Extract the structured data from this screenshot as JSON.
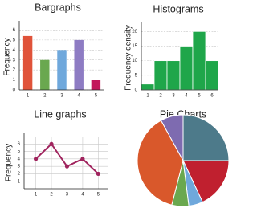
{
  "chart_data": [
    {
      "type": "bar",
      "title": "Bargraphs",
      "ylabel": "Frequency",
      "categories": [
        "1",
        "2",
        "3",
        "4",
        "5"
      ],
      "values": [
        5.4,
        3,
        4,
        5,
        1
      ],
      "colors": [
        "#e0533a",
        "#6aa84f",
        "#6fa8dc",
        "#8e7cc3",
        "#c2185b"
      ],
      "ylim": [
        0,
        6.6
      ],
      "yticks": [
        0,
        1,
        2,
        3,
        4,
        5,
        6
      ],
      "grid": true
    },
    {
      "type": "histogram",
      "title": "Histograms",
      "ylabel": "Frequency density",
      "bins": [
        0.5,
        1.5,
        2.5,
        3.5,
        4.5,
        5.5,
        6.5
      ],
      "values": [
        2,
        10,
        10,
        15,
        20,
        10
      ],
      "color": "#1fa64a",
      "xlim": [
        0.5,
        6.5
      ],
      "xticks": [
        1,
        2,
        3,
        4,
        5,
        6
      ],
      "ylim": [
        0,
        22
      ],
      "yticks": [
        0,
        5,
        10,
        15,
        20
      ],
      "grid": true
    },
    {
      "type": "line",
      "title": "Line graphs",
      "ylabel": "Frequency",
      "x": [
        1,
        2,
        3,
        4,
        5
      ],
      "values": [
        4,
        6,
        3,
        4,
        2
      ],
      "color": "#a0245e",
      "xlim": [
        0.25,
        5.65
      ],
      "xticks": [
        1,
        2,
        3,
        4,
        5
      ],
      "ylim": [
        0,
        7
      ],
      "yticks": [
        1,
        2,
        3,
        4,
        5,
        6
      ],
      "grid": true
    },
    {
      "type": "pie",
      "title": "Pie Charts",
      "values": [
        25,
        18,
        5,
        6,
        38,
        8
      ],
      "colors": [
        "#4d7a8a",
        "#c0202f",
        "#6fa8dc",
        "#6aa84f",
        "#d9582b",
        "#7e6bb0"
      ]
    }
  ]
}
